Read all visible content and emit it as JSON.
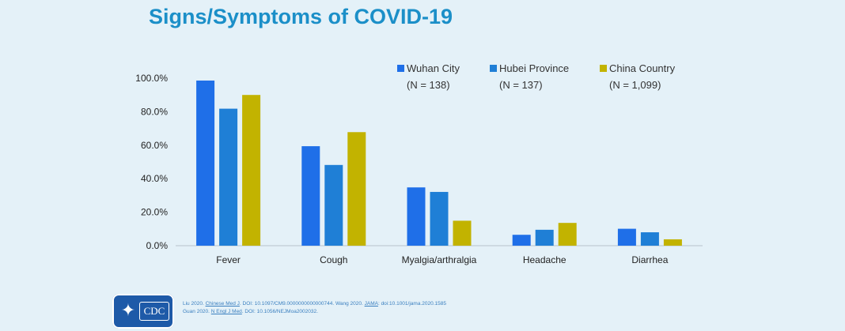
{
  "title": "Signs/Symptoms of COVID-19",
  "chart_data": {
    "type": "bar",
    "categories": [
      "Fever",
      "Cough",
      "Myalgia/arthralgia",
      "Headache",
      "Diarrhea"
    ],
    "series": [
      {
        "name": "Wuhan City",
        "n_label": "(N = 138)",
        "color": "#1f6fe8",
        "values": [
          98.6,
          59.4,
          34.8,
          6.5,
          10.1
        ]
      },
      {
        "name": "Hubei Province",
        "n_label": "(N = 137)",
        "color": "#1f7fd6",
        "values": [
          81.8,
          48.2,
          32.1,
          9.5,
          8.0
        ]
      },
      {
        "name": "China Country",
        "n_label": "(N = 1,099)",
        "color": "#c2b300",
        "values": [
          90.0,
          67.8,
          14.9,
          13.6,
          3.8
        ]
      }
    ],
    "ylim": [
      0,
      100
    ],
    "yticks": [
      "0.0%",
      "20.0%",
      "40.0%",
      "60.0%",
      "80.0%",
      "100.0%"
    ],
    "legend_position": "top-right",
    "grid": false
  },
  "footer": {
    "logo_text": "CDC",
    "citation_line1_a": "Liu 2020. ",
    "citation_line1_b": "Chinese Med J",
    "citation_line1_c": ". DOI: 10.1097/CM9.0000000000000744. Wang 2020. ",
    "citation_line1_d": "JAMA",
    "citation_line1_e": ": doi:10.1001/jama.2020.1585",
    "citation_line2_a": "Guan 2020. ",
    "citation_line2_b": "N Engl J Med",
    "citation_line2_c": ". DOI: 10.1056/NEJMoa2002032."
  }
}
